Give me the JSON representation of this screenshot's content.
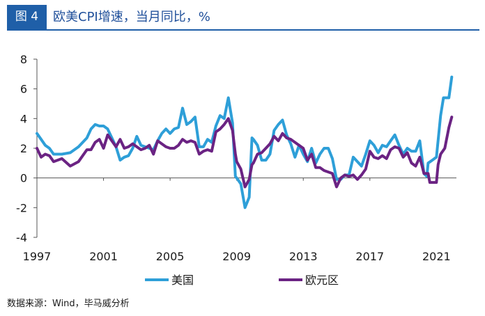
{
  "header": {
    "figure_label": "图 4",
    "title": "欧美CPI增速，当月同比，%"
  },
  "source": "数据来源：Wind，毕马威分析",
  "colors": {
    "us": "#2e9fd8",
    "euro": "#6b2383",
    "accent": "#1f5fa8"
  },
  "chart_data": {
    "type": "line",
    "title": "欧美CPI增速，当月同比，%",
    "xlabel": "",
    "ylabel": "",
    "xlim": [
      1997,
      2022.2
    ],
    "ylim": [
      -4,
      8
    ],
    "yticks": [
      "-4",
      "-2",
      "0",
      "2",
      "4",
      "6",
      "8"
    ],
    "xticks": [
      "1997",
      "2001",
      "2005",
      "2009",
      "2013",
      "2017",
      "2021"
    ],
    "grid": false,
    "legend_position": "bottom",
    "series": [
      {
        "name": "美国",
        "color": "#2e9fd8",
        "points": [
          [
            1997.0,
            3.0
          ],
          [
            1997.25,
            2.6
          ],
          [
            1997.5,
            2.2
          ],
          [
            1997.75,
            2.0
          ],
          [
            1998.0,
            1.6
          ],
          [
            1998.5,
            1.6
          ],
          [
            1999.0,
            1.7
          ],
          [
            1999.5,
            2.1
          ],
          [
            2000.0,
            2.7
          ],
          [
            2000.25,
            3.3
          ],
          [
            2000.5,
            3.6
          ],
          [
            2000.75,
            3.5
          ],
          [
            2001.0,
            3.5
          ],
          [
            2001.25,
            3.3
          ],
          [
            2001.5,
            2.7
          ],
          [
            2001.75,
            2.1
          ],
          [
            2002.0,
            1.2
          ],
          [
            2002.25,
            1.4
          ],
          [
            2002.5,
            1.5
          ],
          [
            2002.75,
            2.0
          ],
          [
            2003.0,
            2.8
          ],
          [
            2003.25,
            2.2
          ],
          [
            2003.5,
            2.1
          ],
          [
            2003.75,
            2.0
          ],
          [
            2004.0,
            1.9
          ],
          [
            2004.25,
            2.5
          ],
          [
            2004.5,
            3.0
          ],
          [
            2004.75,
            3.3
          ],
          [
            2005.0,
            3.0
          ],
          [
            2005.25,
            3.3
          ],
          [
            2005.5,
            3.4
          ],
          [
            2005.75,
            4.7
          ],
          [
            2006.0,
            3.6
          ],
          [
            2006.25,
            3.8
          ],
          [
            2006.5,
            4.1
          ],
          [
            2006.75,
            2.1
          ],
          [
            2007.0,
            2.1
          ],
          [
            2007.25,
            2.6
          ],
          [
            2007.5,
            2.4
          ],
          [
            2007.75,
            3.5
          ],
          [
            2008.0,
            4.2
          ],
          [
            2008.25,
            4.0
          ],
          [
            2008.5,
            5.4
          ],
          [
            2008.75,
            3.7
          ],
          [
            2008.92,
            0.1
          ],
          [
            2009.0,
            0.0
          ],
          [
            2009.25,
            -0.4
          ],
          [
            2009.5,
            -2.0
          ],
          [
            2009.75,
            -1.3
          ],
          [
            2009.92,
            2.7
          ],
          [
            2010.0,
            2.6
          ],
          [
            2010.25,
            2.2
          ],
          [
            2010.5,
            1.2
          ],
          [
            2010.75,
            1.2
          ],
          [
            2011.0,
            1.6
          ],
          [
            2011.25,
            3.2
          ],
          [
            2011.5,
            3.6
          ],
          [
            2011.75,
            3.9
          ],
          [
            2012.0,
            2.9
          ],
          [
            2012.25,
            2.3
          ],
          [
            2012.5,
            1.4
          ],
          [
            2012.75,
            2.2
          ],
          [
            2013.0,
            1.6
          ],
          [
            2013.25,
            1.1
          ],
          [
            2013.5,
            2.0
          ],
          [
            2013.75,
            1.0
          ],
          [
            2014.0,
            1.6
          ],
          [
            2014.25,
            2.0
          ],
          [
            2014.5,
            2.0
          ],
          [
            2014.75,
            1.3
          ],
          [
            2015.0,
            -0.1
          ],
          [
            2015.25,
            -0.1
          ],
          [
            2015.5,
            0.2
          ],
          [
            2015.75,
            0.2
          ],
          [
            2016.0,
            1.4
          ],
          [
            2016.25,
            1.1
          ],
          [
            2016.5,
            0.8
          ],
          [
            2016.75,
            1.6
          ],
          [
            2017.0,
            2.5
          ],
          [
            2017.25,
            2.2
          ],
          [
            2017.5,
            1.7
          ],
          [
            2017.75,
            2.2
          ],
          [
            2018.0,
            2.1
          ],
          [
            2018.25,
            2.5
          ],
          [
            2018.5,
            2.9
          ],
          [
            2018.75,
            2.2
          ],
          [
            2019.0,
            1.6
          ],
          [
            2019.25,
            2.0
          ],
          [
            2019.5,
            1.8
          ],
          [
            2019.75,
            1.8
          ],
          [
            2020.0,
            2.5
          ],
          [
            2020.25,
            0.3
          ],
          [
            2020.42,
            0.1
          ],
          [
            2020.5,
            1.0
          ],
          [
            2020.75,
            1.2
          ],
          [
            2021.0,
            1.4
          ],
          [
            2021.25,
            4.2
          ],
          [
            2021.42,
            5.4
          ],
          [
            2021.75,
            5.4
          ],
          [
            2021.92,
            6.8
          ]
        ]
      },
      {
        "name": "欧元区",
        "color": "#6b2383",
        "points": [
          [
            1997.0,
            2.0
          ],
          [
            1997.25,
            1.4
          ],
          [
            1997.5,
            1.6
          ],
          [
            1997.75,
            1.5
          ],
          [
            1998.0,
            1.1
          ],
          [
            1998.5,
            1.3
          ],
          [
            1999.0,
            0.8
          ],
          [
            1999.5,
            1.1
          ],
          [
            2000.0,
            1.9
          ],
          [
            2000.25,
            1.9
          ],
          [
            2000.5,
            2.4
          ],
          [
            2000.75,
            2.6
          ],
          [
            2001.0,
            2.0
          ],
          [
            2001.25,
            2.9
          ],
          [
            2001.5,
            2.5
          ],
          [
            2001.75,
            2.1
          ],
          [
            2002.0,
            2.6
          ],
          [
            2002.25,
            2.0
          ],
          [
            2002.5,
            2.1
          ],
          [
            2002.75,
            2.3
          ],
          [
            2003.0,
            2.1
          ],
          [
            2003.25,
            1.9
          ],
          [
            2003.5,
            2.0
          ],
          [
            2003.75,
            2.2
          ],
          [
            2004.0,
            1.6
          ],
          [
            2004.25,
            2.5
          ],
          [
            2004.5,
            2.3
          ],
          [
            2004.75,
            2.1
          ],
          [
            2005.0,
            2.0
          ],
          [
            2005.25,
            2.0
          ],
          [
            2005.5,
            2.2
          ],
          [
            2005.75,
            2.6
          ],
          [
            2006.0,
            2.4
          ],
          [
            2006.25,
            2.5
          ],
          [
            2006.5,
            2.4
          ],
          [
            2006.75,
            1.6
          ],
          [
            2007.0,
            1.8
          ],
          [
            2007.25,
            1.9
          ],
          [
            2007.5,
            1.8
          ],
          [
            2007.75,
            3.1
          ],
          [
            2008.0,
            3.3
          ],
          [
            2008.25,
            3.6
          ],
          [
            2008.5,
            4.0
          ],
          [
            2008.75,
            3.2
          ],
          [
            2008.92,
            1.6
          ],
          [
            2009.0,
            1.1
          ],
          [
            2009.25,
            0.6
          ],
          [
            2009.5,
            -0.6
          ],
          [
            2009.75,
            -0.1
          ],
          [
            2009.92,
            0.9
          ],
          [
            2010.0,
            1.0
          ],
          [
            2010.25,
            1.6
          ],
          [
            2010.5,
            1.7
          ],
          [
            2010.75,
            2.0
          ],
          [
            2011.0,
            2.3
          ],
          [
            2011.25,
            2.8
          ],
          [
            2011.5,
            2.5
          ],
          [
            2011.75,
            3.0
          ],
          [
            2012.0,
            2.7
          ],
          [
            2012.25,
            2.6
          ],
          [
            2012.5,
            2.4
          ],
          [
            2012.75,
            2.2
          ],
          [
            2013.0,
            2.0
          ],
          [
            2013.25,
            1.2
          ],
          [
            2013.5,
            1.6
          ],
          [
            2013.75,
            0.7
          ],
          [
            2014.0,
            0.7
          ],
          [
            2014.25,
            0.5
          ],
          [
            2014.5,
            0.4
          ],
          [
            2014.75,
            0.3
          ],
          [
            2015.0,
            -0.6
          ],
          [
            2015.25,
            0.0
          ],
          [
            2015.5,
            0.2
          ],
          [
            2015.75,
            0.1
          ],
          [
            2016.0,
            0.2
          ],
          [
            2016.25,
            -0.1
          ],
          [
            2016.5,
            0.2
          ],
          [
            2016.75,
            0.6
          ],
          [
            2017.0,
            1.8
          ],
          [
            2017.25,
            1.4
          ],
          [
            2017.5,
            1.3
          ],
          [
            2017.75,
            1.5
          ],
          [
            2018.0,
            1.3
          ],
          [
            2018.25,
            1.9
          ],
          [
            2018.5,
            2.1
          ],
          [
            2018.75,
            2.0
          ],
          [
            2019.0,
            1.4
          ],
          [
            2019.25,
            1.7
          ],
          [
            2019.5,
            1.0
          ],
          [
            2019.75,
            0.8
          ],
          [
            2020.0,
            1.4
          ],
          [
            2020.25,
            0.3
          ],
          [
            2020.5,
            0.3
          ],
          [
            2020.6,
            -0.3
          ],
          [
            2020.75,
            -0.3
          ],
          [
            2021.0,
            -0.3
          ],
          [
            2021.1,
            0.9
          ],
          [
            2021.25,
            1.6
          ],
          [
            2021.5,
            2.0
          ],
          [
            2021.75,
            3.4
          ],
          [
            2021.92,
            4.1
          ]
        ]
      }
    ]
  }
}
